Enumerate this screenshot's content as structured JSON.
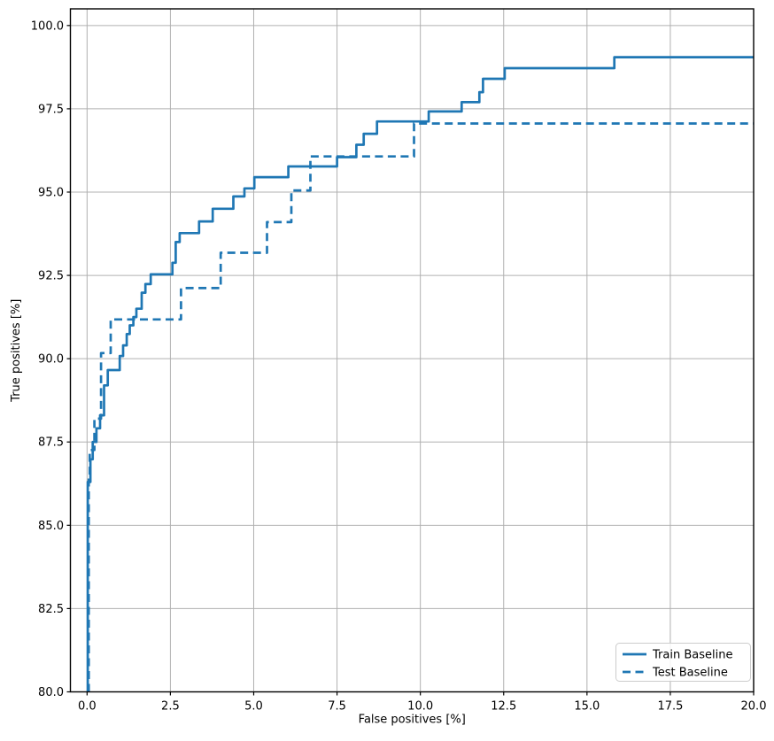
{
  "figure": {
    "background": "#ffffff"
  },
  "chart_data": {
    "type": "line",
    "subtype": "step",
    "title": "",
    "xlabel": "False positives [%]",
    "ylabel": "True positives [%]",
    "xlim": [
      -0.5,
      20
    ],
    "ylim": [
      80,
      100.5
    ],
    "grid": true,
    "grid_color": "#b0b0b0",
    "axes_color": "#000000",
    "line_width": 2.7,
    "xticks": {
      "values": [
        0,
        2.5,
        5,
        7.5,
        10,
        12.5,
        15,
        17.5,
        20
      ],
      "labels": [
        "0.0",
        "2.5",
        "5.0",
        "7.5",
        "10.0",
        "12.5",
        "15.0",
        "17.5",
        "20.0"
      ]
    },
    "yticks": {
      "values": [
        80,
        82.5,
        85,
        87.5,
        90,
        92.5,
        95,
        97.5,
        100
      ],
      "labels": [
        "80.0",
        "82.5",
        "85.0",
        "87.5",
        "90.0",
        "92.5",
        "95.0",
        "97.5",
        "100.0"
      ]
    },
    "legend": {
      "position": "lower right",
      "items": [
        "Train Baseline",
        "Test Baseline"
      ]
    },
    "series": [
      {
        "name": "Train Baseline",
        "color": "#1f77b4",
        "style": "solid",
        "points": [
          [
            0.02,
            80.0
          ],
          [
            0.02,
            86.3
          ],
          [
            0.1,
            86.3
          ],
          [
            0.1,
            86.98
          ],
          [
            0.17,
            86.98
          ],
          [
            0.17,
            87.5
          ],
          [
            0.28,
            87.5
          ],
          [
            0.28,
            87.91
          ],
          [
            0.39,
            87.91
          ],
          [
            0.39,
            88.3
          ],
          [
            0.51,
            88.3
          ],
          [
            0.51,
            89.2
          ],
          [
            0.62,
            89.2
          ],
          [
            0.62,
            89.66
          ],
          [
            0.98,
            89.66
          ],
          [
            0.98,
            90.08
          ],
          [
            1.08,
            90.08
          ],
          [
            1.08,
            90.4
          ],
          [
            1.19,
            90.4
          ],
          [
            1.19,
            90.74
          ],
          [
            1.28,
            90.74
          ],
          [
            1.28,
            91.0
          ],
          [
            1.39,
            91.0
          ],
          [
            1.39,
            91.25
          ],
          [
            1.48,
            91.25
          ],
          [
            1.48,
            91.5
          ],
          [
            1.64,
            91.5
          ],
          [
            1.64,
            91.98
          ],
          [
            1.75,
            91.98
          ],
          [
            1.75,
            92.24
          ],
          [
            1.91,
            92.24
          ],
          [
            1.91,
            92.53
          ],
          [
            2.56,
            92.53
          ],
          [
            2.56,
            92.88
          ],
          [
            2.66,
            92.88
          ],
          [
            2.66,
            93.5
          ],
          [
            2.78,
            93.5
          ],
          [
            2.78,
            93.77
          ],
          [
            3.36,
            93.77
          ],
          [
            3.36,
            94.12
          ],
          [
            3.77,
            94.12
          ],
          [
            3.77,
            94.5
          ],
          [
            4.39,
            94.5
          ],
          [
            4.39,
            94.87
          ],
          [
            4.72,
            94.87
          ],
          [
            4.72,
            95.11
          ],
          [
            5.02,
            95.11
          ],
          [
            5.02,
            95.45
          ],
          [
            6.04,
            95.45
          ],
          [
            6.04,
            95.77
          ],
          [
            7.5,
            95.77
          ],
          [
            7.5,
            96.05
          ],
          [
            8.08,
            96.05
          ],
          [
            8.08,
            96.42
          ],
          [
            8.3,
            96.42
          ],
          [
            8.3,
            96.75
          ],
          [
            8.7,
            96.75
          ],
          [
            8.7,
            97.12
          ],
          [
            10.25,
            97.12
          ],
          [
            10.25,
            97.42
          ],
          [
            11.24,
            97.42
          ],
          [
            11.24,
            97.7
          ],
          [
            11.77,
            97.7
          ],
          [
            11.77,
            98.0
          ],
          [
            11.88,
            98.0
          ],
          [
            11.88,
            98.4
          ],
          [
            12.53,
            98.4
          ],
          [
            12.53,
            98.72
          ],
          [
            15.82,
            98.72
          ],
          [
            15.82,
            99.05
          ],
          [
            20.0,
            99.05
          ]
        ]
      },
      {
        "name": "Test Baseline",
        "color": "#1f77b4",
        "style": "dashed",
        "points": [
          [
            0.05,
            80.0
          ],
          [
            0.05,
            86.5
          ],
          [
            0.08,
            86.5
          ],
          [
            0.08,
            87.26
          ],
          [
            0.22,
            87.26
          ],
          [
            0.22,
            88.2
          ],
          [
            0.42,
            88.2
          ],
          [
            0.42,
            90.17
          ],
          [
            0.71,
            90.17
          ],
          [
            0.71,
            91.18
          ],
          [
            2.82,
            91.18
          ],
          [
            2.82,
            92.12
          ],
          [
            4.01,
            92.12
          ],
          [
            4.01,
            93.18
          ],
          [
            5.4,
            93.18
          ],
          [
            5.4,
            94.1
          ],
          [
            6.13,
            94.1
          ],
          [
            6.13,
            95.05
          ],
          [
            6.7,
            95.05
          ],
          [
            6.7,
            96.07
          ],
          [
            9.81,
            96.07
          ],
          [
            9.81,
            97.06
          ],
          [
            20.0,
            97.06
          ]
        ]
      }
    ]
  }
}
